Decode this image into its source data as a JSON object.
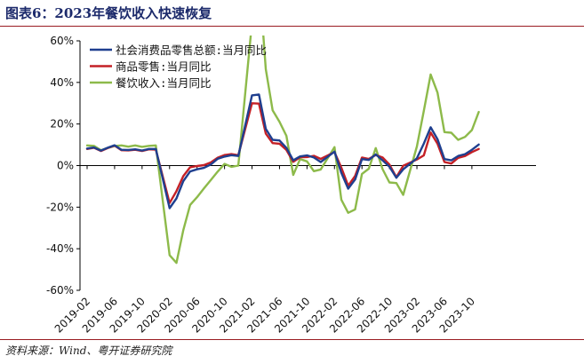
{
  "title": "图表6：2023年餐饮收入快速恢复",
  "source": "资料来源：Wind、粤开证券研究院",
  "chart_data": {
    "type": "line",
    "title": "",
    "xlabel": "",
    "ylabel": "",
    "ylim": [
      -60,
      60
    ],
    "yticks": [
      "60%",
      "40%",
      "20%",
      "0%",
      "-20%",
      "-40%",
      "-60%"
    ],
    "xticks": [
      "2019-02",
      "2019-06",
      "2019-10",
      "2020-02",
      "2020-06",
      "2020-10",
      "2021-02",
      "2021-06",
      "2021-10",
      "2022-02",
      "2022-06",
      "2022-10",
      "2023-02",
      "2023-06",
      "2023-10"
    ],
    "grid": false,
    "legend": "top-left",
    "x": [
      "2019-02",
      "2019-03",
      "2019-04",
      "2019-05",
      "2019-06",
      "2019-07",
      "2019-08",
      "2019-09",
      "2019-10",
      "2019-11",
      "2019-12",
      "2020-02",
      "2020-03",
      "2020-04",
      "2020-05",
      "2020-06",
      "2020-07",
      "2020-08",
      "2020-09",
      "2020-10",
      "2020-11",
      "2020-12",
      "2021-02",
      "2021-03",
      "2021-04",
      "2021-05",
      "2021-06",
      "2021-07",
      "2021-08",
      "2021-09",
      "2021-10",
      "2021-11",
      "2021-12",
      "2022-02",
      "2022-03",
      "2022-04",
      "2022-05",
      "2022-06",
      "2022-07",
      "2022-08",
      "2022-09",
      "2022-10",
      "2022-11",
      "2022-12",
      "2023-02",
      "2023-03",
      "2023-04",
      "2023-05",
      "2023-06",
      "2023-07",
      "2023-08",
      "2023-09",
      "2023-10",
      "2023-11"
    ],
    "series": [
      {
        "name": "社会消费品零售总额:当月同比",
        "color": "#1f3f8f",
        "values": [
          8.2,
          8.7,
          7.2,
          8.6,
          9.8,
          7.6,
          7.5,
          7.8,
          7.2,
          8.0,
          8.0,
          -20.5,
          -15.8,
          -7.5,
          -2.8,
          -1.8,
          -1.1,
          0.5,
          3.3,
          4.3,
          5.0,
          4.6,
          33.8,
          34.2,
          17.7,
          12.4,
          12.1,
          8.5,
          2.5,
          4.4,
          4.9,
          3.9,
          1.7,
          6.7,
          -3.5,
          -11.1,
          -6.7,
          3.1,
          2.7,
          5.4,
          2.5,
          -0.5,
          -5.9,
          -1.8,
          3.5,
          10.6,
          18.4,
          12.7,
          3.1,
          2.5,
          4.6,
          5.5,
          7.6,
          10.1
        ]
      },
      {
        "name": "商品零售:当月同比",
        "color": "#c42026",
        "values": [
          8.0,
          8.6,
          7.0,
          8.4,
          9.6,
          7.4,
          7.3,
          7.6,
          7.0,
          7.8,
          7.7,
          -18.0,
          -12.3,
          -5.1,
          -0.8,
          -0.2,
          0.2,
          1.5,
          3.8,
          5.1,
          5.5,
          5.0,
          30.0,
          29.8,
          15.4,
          10.8,
          10.5,
          7.5,
          1.8,
          4.0,
          4.1,
          4.7,
          3.2,
          6.5,
          -1.0,
          -9.7,
          -5.0,
          3.9,
          3.2,
          5.1,
          3.9,
          0.5,
          -5.6,
          -0.1,
          2.9,
          4.9,
          15.9,
          10.5,
          1.7,
          1.0,
          3.7,
          4.6,
          6.5,
          8.0
        ]
      },
      {
        "name": "餐饮收入:当月同比",
        "color": "#8dba4a",
        "values": [
          9.7,
          9.5,
          7.4,
          8.5,
          9.4,
          9.7,
          9.1,
          9.7,
          9.0,
          9.5,
          9.7,
          -43.1,
          -46.8,
          -31.1,
          -18.9,
          -15.2,
          -11.0,
          -7.0,
          -2.9,
          0.8,
          -0.6,
          0.0,
          68.9,
          91.6,
          46.4,
          26.6,
          21.1,
          14.3,
          -4.5,
          3.1,
          2.0,
          -2.7,
          -1.9,
          8.9,
          -16.4,
          -22.7,
          -21.1,
          -4.0,
          -1.5,
          8.4,
          -1.7,
          -8.1,
          -8.4,
          -14.1,
          9.2,
          26.3,
          43.8,
          35.1,
          16.1,
          15.8,
          12.4,
          13.8,
          17.1,
          25.8
        ]
      }
    ]
  }
}
